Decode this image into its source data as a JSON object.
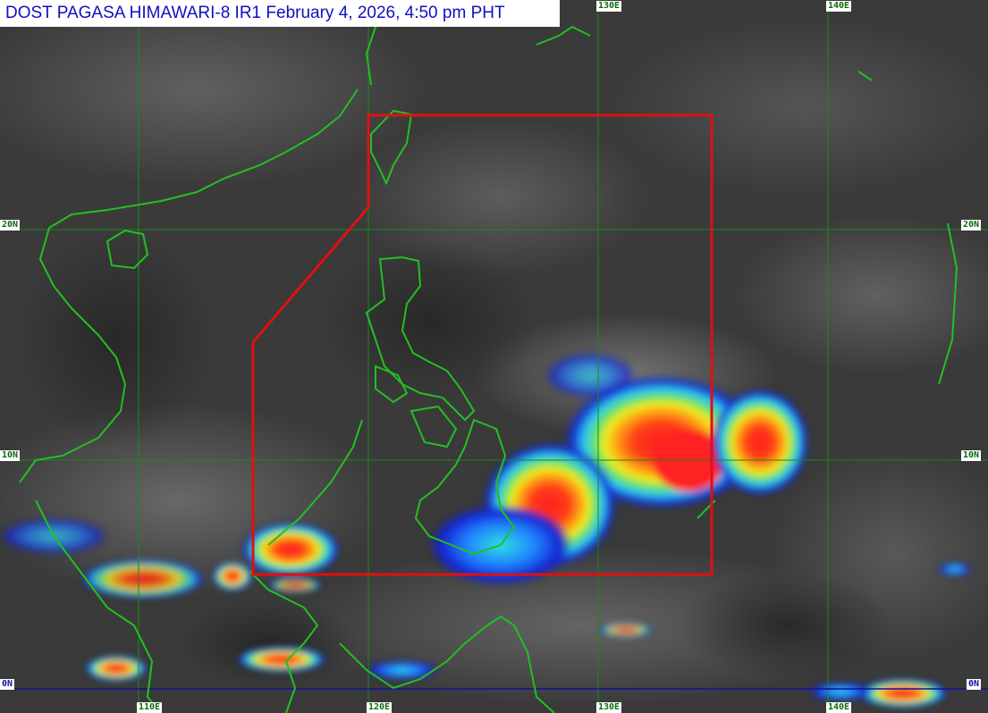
{
  "title": "DOST PAGASA HIMAWARI-8 IR1 February 4, 2026, 4:50 pm PHT",
  "longitude_labels": [
    "110E",
    "120E",
    "130E",
    "140E"
  ],
  "latitude_labels": [
    "20N",
    "10N",
    "0N"
  ],
  "colors": {
    "background_clouds": "#3c3c3c",
    "coastline": "#22c022",
    "gridline": "#1a8a1a",
    "equator": "#1010a0",
    "par_boundary": "#e01010",
    "title_text": "#1010c0",
    "convection_scale": [
      "#1414d0",
      "#20a0ff",
      "#30e0e0",
      "#60e060",
      "#f0f020",
      "#ff9010",
      "#ff2020"
    ]
  },
  "overlay": {
    "boundary": "Philippine Area of Responsibility"
  }
}
